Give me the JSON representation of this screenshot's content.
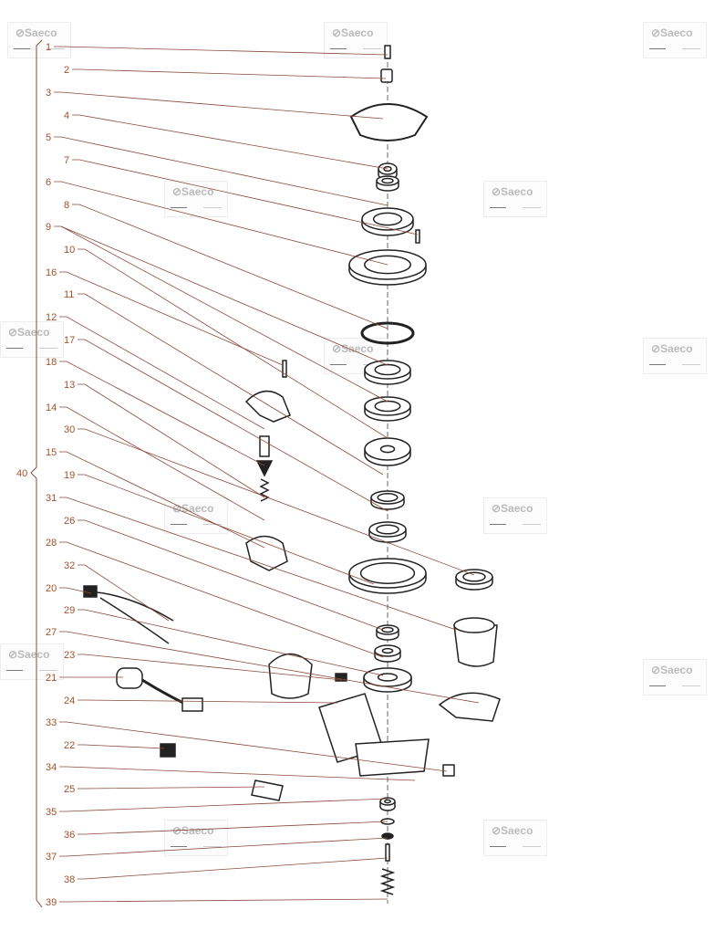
{
  "watermark_text": "⊘Saeco",
  "group_label": "40",
  "labels": [
    "1",
    "2",
    "3",
    "4",
    "5",
    "7",
    "6",
    "8",
    "9",
    "10",
    "16",
    "11",
    "12",
    "17",
    "18",
    "13",
    "14",
    "30",
    "15",
    "19",
    "31",
    "26",
    "28",
    "32",
    "20",
    "29",
    "27",
    "23",
    "21",
    "24",
    "33",
    "22",
    "34",
    "25",
    "35",
    "36",
    "37",
    "38",
    "39"
  ],
  "colors": {
    "label": "#a0522d",
    "leader": "#8b4a3a",
    "part": "#222222"
  }
}
